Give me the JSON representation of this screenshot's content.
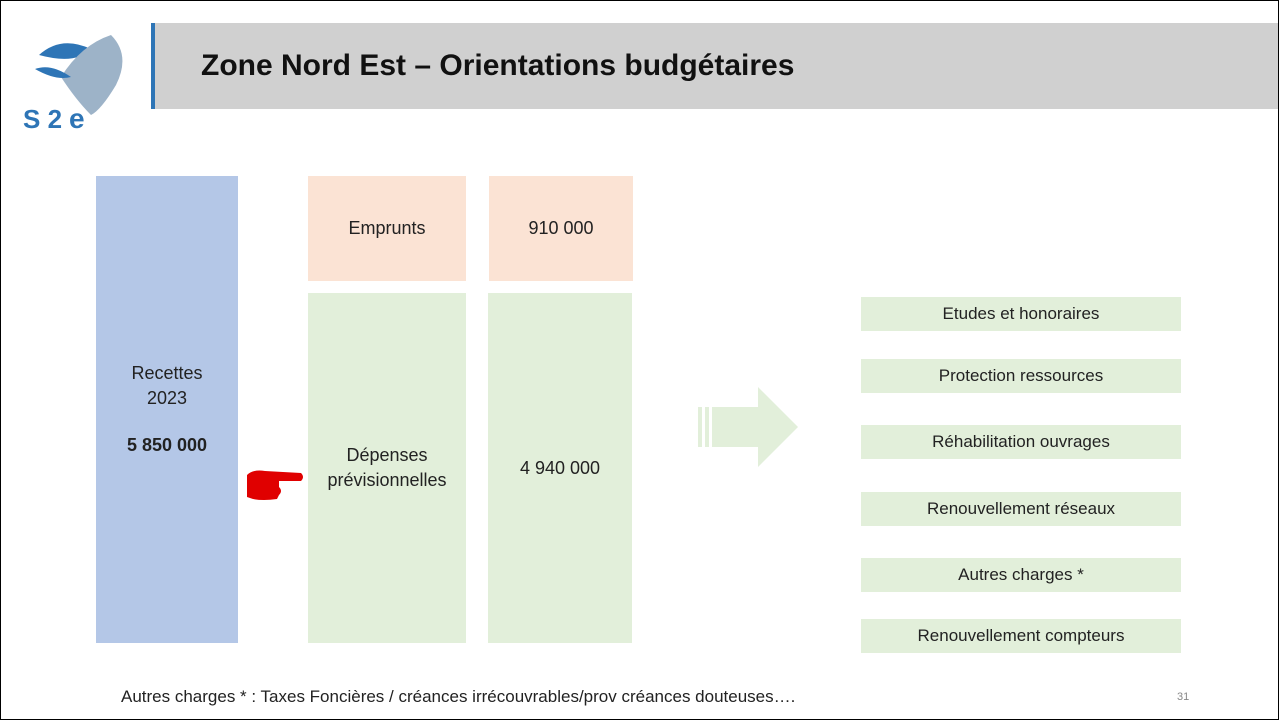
{
  "logo": {
    "text": "S 2",
    "letter": "e"
  },
  "header": {
    "title": "Zone Nord Est – Orientations budgétaires"
  },
  "recettes": {
    "lines": [
      "Recettes",
      "2023"
    ],
    "amount": "5 850 000"
  },
  "emprunts": {
    "label": "Emprunts",
    "amount": "910 000"
  },
  "depenses": {
    "lines": [
      "Dépenses",
      "prévisionnelles"
    ],
    "amount": "4 940 000"
  },
  "items": [
    "Etudes et honoraires",
    "Protection ressources",
    "Réhabilitation ouvrages",
    "Renouvellement réseaux",
    "Autres charges *",
    "Renouvellement compteurs"
  ],
  "footnote": "Autres charges * : Taxes Foncières / créances irrécouvrables/prov créances douteuses….",
  "page_number": "31"
}
